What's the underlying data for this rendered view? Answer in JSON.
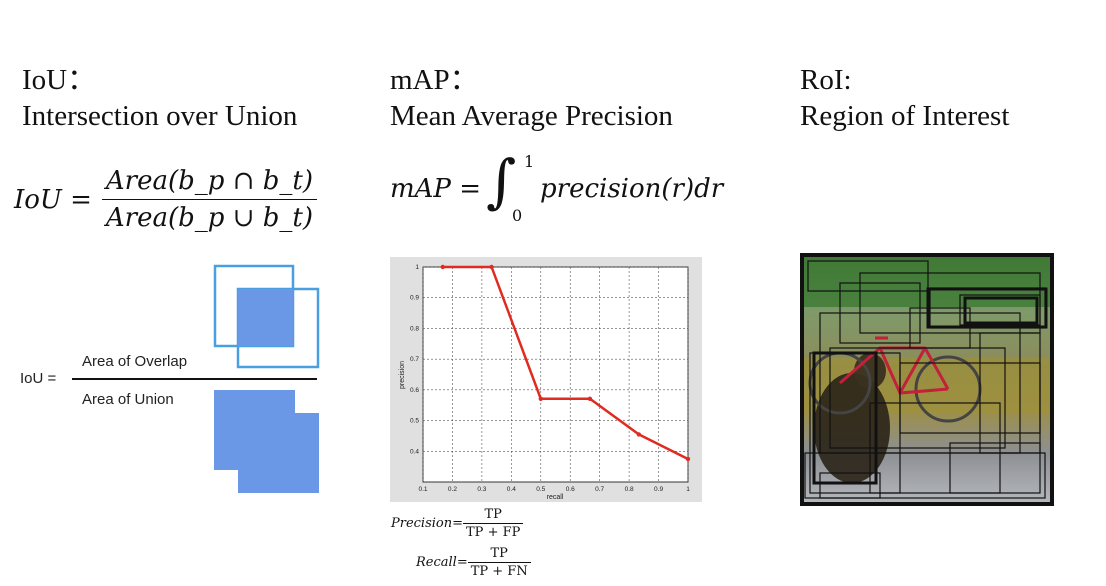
{
  "iou": {
    "title": "IoU：",
    "subtitle": "Intersection over Union",
    "formula": {
      "lhs": "IoU =",
      "numerator": "Area(b_p ∩ b_t)",
      "denominator": "Area(b_p ∪ b_t)"
    },
    "diagram": {
      "lhs": "IoU =",
      "numerator": "Area of Overlap",
      "denominator": "Area of Union",
      "colors": {
        "outline": "#4a9fe0",
        "fill": "#6a98e6"
      }
    }
  },
  "map": {
    "title": "mAP：",
    "subtitle": "Mean Average Precision",
    "formula": {
      "lhs": "mAP =",
      "upper": "1",
      "lower": "0",
      "integrand": "precision(r)dr"
    },
    "precision_formula": {
      "lhs": "Precision=",
      "numerator": "TP",
      "denominator": "TP + FP"
    },
    "recall_formula": {
      "lhs": "Recall=",
      "numerator": "TP",
      "denominator": "TP + FN"
    }
  },
  "roi": {
    "title": "RoI:",
    "subtitle": "Region of Interest"
  },
  "chart_data": {
    "type": "line",
    "title": "",
    "xlabel": "recall",
    "ylabel": "precision",
    "xlim": [
      0.1,
      1
    ],
    "ylim": [
      0.3,
      1
    ],
    "xticks": [
      "0.1",
      "0.2",
      "0.3",
      "0.4",
      "0.5",
      "0.6",
      "0.7",
      "0.8",
      "0.9",
      "1"
    ],
    "yticks": [
      "0.4",
      "0.5",
      "0.6",
      "0.7",
      "0.8",
      "0.9",
      "1"
    ],
    "grid": true,
    "series": [
      {
        "color": "#e02b20",
        "x": [
          0.167,
          0.333,
          0.5,
          0.667,
          0.833,
          1.0
        ],
        "y": [
          1.0,
          1.0,
          0.571,
          0.571,
          0.455,
          0.375
        ]
      }
    ]
  }
}
